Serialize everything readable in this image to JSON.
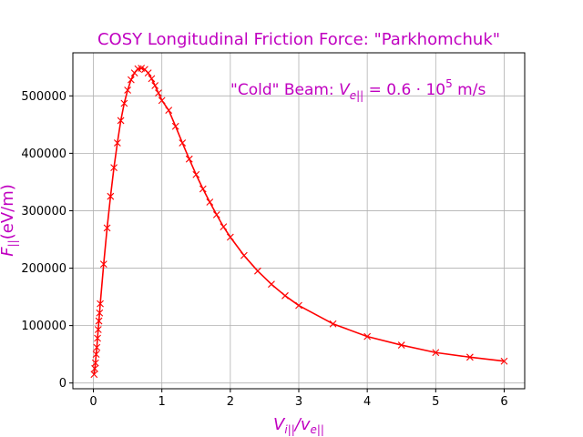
{
  "chart_data": {
    "type": "line",
    "title": "COSY Longitudinal Friction Force: \"Parkhomchuk\"",
    "xlabel": "V_i||/v_e||",
    "ylabel": "F_||(eV/m)",
    "annotation": "\"Cold\" Beam: V_e|| = 0.6·10^5 m/s",
    "xlim": [
      -0.3,
      6.3
    ],
    "ylim": [
      -10000,
      575000
    ],
    "xticks": [
      0,
      1,
      2,
      3,
      4,
      5,
      6
    ],
    "yticks": [
      0,
      100000,
      200000,
      300000,
      400000,
      500000
    ],
    "grid": true,
    "line_color": "#ff0000",
    "series": [
      {
        "marker": "x",
        "x": [
          0.01,
          0.02,
          0.03,
          0.04,
          0.05,
          0.06,
          0.07,
          0.08,
          0.09,
          0.1,
          0.15,
          0.2,
          0.25,
          0.3,
          0.35,
          0.4,
          0.45,
          0.5,
          0.55,
          0.6,
          0.65,
          0.7,
          0.75,
          0.8,
          0.85,
          0.9,
          0.95,
          1.0,
          1.1,
          1.2,
          1.3,
          1.4,
          1.5,
          1.6,
          1.7,
          1.8,
          1.9,
          2.0,
          2.2,
          2.4,
          2.6,
          2.8,
          3.0,
          3.5,
          4.0,
          4.5,
          5.0,
          5.5,
          6.0
        ],
        "y": [
          15000,
          25000,
          35000,
          50000,
          62000,
          78000,
          93000,
          108000,
          122000,
          138000,
          207000,
          270000,
          325000,
          375000,
          418000,
          457000,
          487000,
          510000,
          528000,
          540000,
          547000,
          548000,
          546000,
          540000,
          530000,
          518000,
          505000,
          492000,
          475000,
          447000,
          418000,
          390000,
          363000,
          338000,
          315000,
          293000,
          272000,
          254000,
          222000,
          195000,
          172000,
          152000,
          135000,
          103000,
          81000,
          66000,
          53000,
          45000,
          38000
        ]
      }
    ]
  }
}
